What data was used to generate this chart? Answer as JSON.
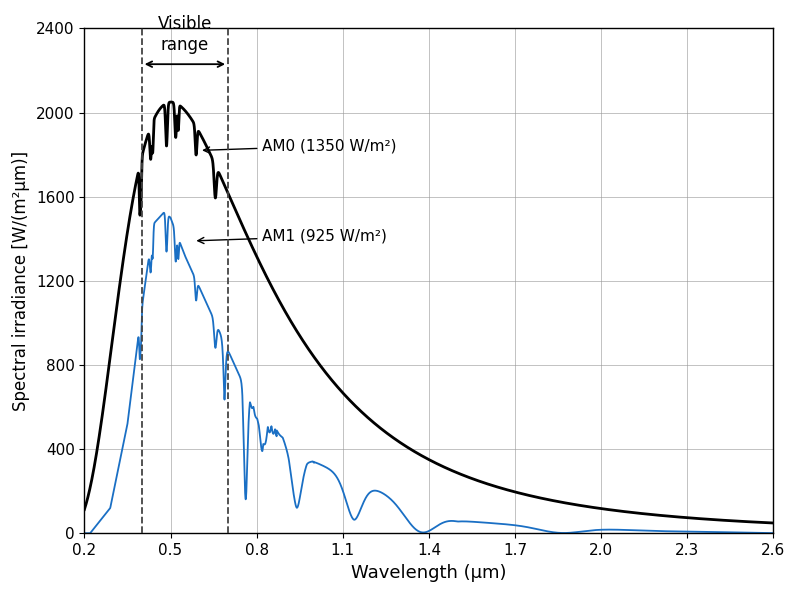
{
  "xlabel": "Wavelength (μm)",
  "ylabel_display": "Spectral irradiance [W/(m²μm)]",
  "xlim": [
    0.2,
    2.6
  ],
  "ylim": [
    0,
    2400
  ],
  "yticks": [
    0,
    400,
    800,
    1200,
    1600,
    2000,
    2400
  ],
  "xticks": [
    0.2,
    0.5,
    0.8,
    1.1,
    1.4,
    1.7,
    2.0,
    2.3,
    2.6
  ],
  "visible_range": [
    0.4,
    0.7
  ],
  "am0_label": "AM0 (1350 W/m²)",
  "am1_label": "AM1 (925 W/m²)",
  "am0_color": "#000000",
  "am1_color": "#1a6fc4",
  "visible_range_label": "Visible\nrange",
  "background_color": "#ffffff",
  "grid_color": "#999999"
}
